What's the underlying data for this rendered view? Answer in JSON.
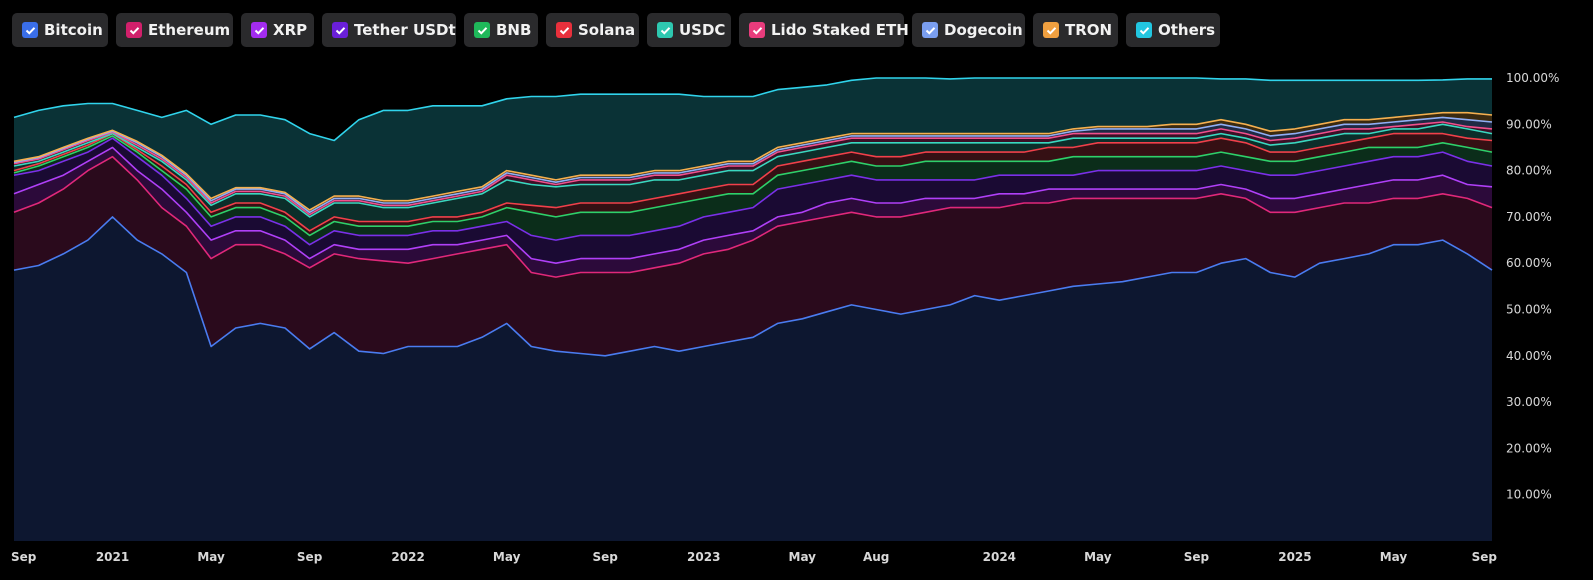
{
  "legend": [
    {
      "name": "Bitcoin",
      "color": "#3a6ee8"
    },
    {
      "name": "Ethereum",
      "color": "#d1206b"
    },
    {
      "name": "XRP",
      "color": "#a32cf0"
    },
    {
      "name": "Tether USDt",
      "color": "#6a1fd8"
    },
    {
      "name": "BNB",
      "color": "#1fb85a"
    },
    {
      "name": "Solana",
      "color": "#e8303c"
    },
    {
      "name": "USDC",
      "color": "#2ec8b0"
    },
    {
      "name": "Lido Staked ETH",
      "color": "#e83c7c"
    },
    {
      "name": "Dogecoin",
      "color": "#7a9ef0"
    },
    {
      "name": "TRON",
      "color": "#f0a040"
    },
    {
      "name": "Others",
      "color": "#22c6e0"
    }
  ],
  "chart_data": {
    "type": "area",
    "stacked": true,
    "title": "",
    "xlabel": "",
    "ylabel": "",
    "ylim": [
      0,
      100
    ],
    "y_ticks": [
      "10.00%",
      "20.00%",
      "30.00%",
      "40.00%",
      "50.00%",
      "60.00%",
      "70.00%",
      "80.00%",
      "90.00%",
      "100.00%"
    ],
    "x_ticks": [
      {
        "label": "Sep",
        "t": 0
      },
      {
        "label": "2021",
        "t": 4
      },
      {
        "label": "May",
        "t": 8
      },
      {
        "label": "Sep",
        "t": 12
      },
      {
        "label": "2022",
        "t": 16
      },
      {
        "label": "May",
        "t": 20
      },
      {
        "label": "Sep",
        "t": 24
      },
      {
        "label": "2023",
        "t": 28
      },
      {
        "label": "May",
        "t": 32
      },
      {
        "label": "Aug",
        "t": 35
      },
      {
        "label": "2024",
        "t": 40
      },
      {
        "label": "May",
        "t": 44
      },
      {
        "label": "Sep",
        "t": 48
      },
      {
        "label": "2025",
        "t": 52
      },
      {
        "label": "May",
        "t": 56
      },
      {
        "label": "Sep",
        "t": 60
      }
    ],
    "x_months": [
      0,
      1,
      2,
      3,
      4,
      5,
      6,
      7,
      8,
      9,
      10,
      11,
      12,
      13,
      14,
      15,
      16,
      17,
      18,
      19,
      20,
      21,
      22,
      23,
      24,
      25,
      26,
      27,
      28,
      29,
      30,
      31,
      32,
      33,
      34,
      35,
      36,
      37,
      38,
      39,
      40,
      41,
      42,
      43,
      44,
      45,
      46,
      47,
      48,
      49,
      50,
      51,
      52,
      53,
      54,
      55,
      56,
      57,
      58,
      59,
      60
    ],
    "cumulative_series": [
      {
        "name": "Bitcoin",
        "values": [
          58.5,
          59.5,
          62,
          65,
          70,
          65,
          62,
          58,
          42,
          46,
          47,
          46,
          41.5,
          45,
          41,
          40.5,
          42,
          42,
          42,
          44,
          47,
          42,
          41,
          40.5,
          40,
          41,
          42,
          41,
          42,
          43,
          44,
          47,
          48,
          49.5,
          51,
          50,
          49,
          50,
          51,
          53,
          52,
          53,
          54,
          55,
          55.5,
          56,
          57,
          58,
          58,
          60,
          61,
          58,
          57,
          60,
          61,
          62,
          64,
          64,
          65,
          62,
          58.5
        ]
      },
      {
        "name": "Ethereum",
        "values": [
          71,
          73,
          76,
          80,
          83,
          78,
          72,
          68,
          61,
          64,
          64,
          62,
          59,
          62,
          61,
          60.5,
          60,
          61,
          62,
          63,
          64,
          58,
          57,
          58,
          58,
          58,
          59,
          60,
          62,
          63,
          65,
          68,
          69,
          70,
          71,
          70,
          70,
          71,
          72,
          72,
          72,
          73,
          73,
          74,
          74,
          74,
          74,
          74,
          74,
          75,
          74,
          71,
          71,
          72,
          73,
          73,
          74,
          74,
          75,
          74,
          72
        ]
      },
      {
        "name": "XRP",
        "values": [
          75,
          77,
          79,
          82,
          85,
          80,
          76,
          71,
          65,
          67,
          67,
          65,
          61,
          64,
          63,
          63,
          63,
          64,
          64,
          65,
          66,
          61,
          60,
          61,
          61,
          61,
          62,
          63,
          65,
          66,
          67,
          70,
          71,
          73,
          74,
          73,
          73,
          74,
          74,
          74,
          75,
          75,
          76,
          76,
          76,
          76,
          76,
          76,
          76,
          77,
          76,
          74,
          74,
          75,
          76,
          77,
          78,
          78,
          79,
          77,
          76.5
        ]
      },
      {
        "name": "Tether USDt",
        "values": [
          79,
          80,
          82,
          84,
          87,
          83,
          79,
          74,
          68,
          70,
          70,
          68,
          64,
          67,
          66,
          66,
          66,
          67,
          67,
          68,
          69,
          66,
          65,
          66,
          66,
          66,
          67,
          68,
          70,
          71,
          72,
          76,
          77,
          78,
          79,
          78,
          78,
          78,
          78,
          78,
          79,
          79,
          79,
          79,
          80,
          80,
          80,
          80,
          80,
          81,
          80,
          79,
          79,
          80,
          81,
          82,
          83,
          83,
          84,
          82,
          81
        ]
      },
      {
        "name": "BNB",
        "values": [
          79.5,
          81,
          83,
          85,
          87.5,
          84,
          80,
          76,
          70,
          72,
          72,
          70,
          66,
          69,
          68,
          68,
          68,
          69,
          69,
          70,
          72,
          71,
          70,
          71,
          71,
          71,
          72,
          73,
          74,
          75,
          75,
          79,
          80,
          81,
          82,
          81,
          81,
          82,
          82,
          82,
          82,
          82,
          82,
          83,
          83,
          83,
          83,
          83,
          83,
          84,
          83,
          82,
          82,
          83,
          84,
          85,
          85,
          85,
          86,
          85,
          84
        ]
      },
      {
        "name": "Solana",
        "values": [
          80,
          81.5,
          83.5,
          85.5,
          88,
          84.5,
          81,
          77,
          71,
          73,
          73,
          71,
          67,
          70,
          69,
          69,
          69,
          70,
          70,
          71,
          73,
          72.5,
          72,
          73,
          73,
          73,
          74,
          75,
          76,
          77,
          77,
          81,
          82,
          83,
          84,
          83,
          83,
          84,
          84,
          84,
          84,
          84,
          85,
          85,
          86,
          86,
          86,
          86,
          86,
          87,
          86,
          84,
          84,
          85,
          86,
          87,
          88,
          88,
          88,
          87,
          86.5
        ]
      },
      {
        "name": "USDC",
        "values": [
          81,
          82,
          84,
          86,
          88,
          85,
          82,
          78,
          72.5,
          75,
          75,
          74,
          70,
          73,
          73,
          72,
          72,
          73,
          74,
          75,
          78,
          77,
          76.5,
          77,
          77,
          77,
          78,
          78,
          79,
          80,
          80,
          83,
          84,
          85,
          86,
          86,
          86,
          86,
          86,
          86,
          86,
          86,
          86,
          87,
          87,
          87,
          87,
          87,
          87,
          88,
          87,
          85.5,
          86,
          87,
          88,
          88,
          89,
          89,
          90,
          89,
          88
        ]
      },
      {
        "name": "Lido Staked ETH",
        "values": [
          81.5,
          82.5,
          84.5,
          86.5,
          88.3,
          85.5,
          82.5,
          78.5,
          73,
          75.5,
          75.5,
          74.5,
          70.5,
          73.5,
          73.5,
          72.5,
          72.5,
          73.5,
          74.5,
          75.5,
          79,
          78,
          77,
          78,
          78,
          78,
          79,
          79,
          80,
          81,
          81,
          84,
          85,
          86,
          87,
          87,
          87,
          87,
          87,
          87,
          87,
          87,
          87,
          88,
          88,
          88,
          88,
          88,
          88,
          89,
          88,
          86.5,
          87,
          88,
          89,
          89,
          89.5,
          90,
          90.5,
          89.5,
          89
        ]
      },
      {
        "name": "Dogecoin",
        "values": [
          81.8,
          82.8,
          84.8,
          86.8,
          88.5,
          86,
          83,
          79,
          73.5,
          76,
          76,
          75,
          71,
          74,
          74,
          73,
          73,
          74,
          75,
          76,
          79.5,
          78.5,
          77.5,
          78.5,
          78.5,
          78.5,
          79.5,
          79.5,
          80.5,
          81.5,
          81.5,
          84.5,
          85.5,
          86.5,
          87.5,
          87.5,
          87.5,
          87.5,
          87.5,
          87.5,
          87.5,
          87.5,
          87.5,
          88.5,
          89,
          89,
          89,
          89,
          89,
          90,
          89,
          87.5,
          88,
          89,
          90,
          90,
          90.5,
          91,
          91.5,
          91,
          90.5
        ]
      },
      {
        "name": "TRON",
        "values": [
          82,
          83,
          85,
          87,
          88.7,
          86.3,
          83.3,
          79.3,
          74,
          76.3,
          76.3,
          75.3,
          71.5,
          74.5,
          74.5,
          73.5,
          73.5,
          74.5,
          75.5,
          76.5,
          80,
          79,
          78,
          79,
          79,
          79,
          80,
          80,
          81,
          82,
          82,
          85,
          86,
          87,
          88,
          88,
          88,
          88,
          88,
          88,
          88,
          88,
          88,
          89,
          89.5,
          89.5,
          89.5,
          90,
          90,
          91,
          90,
          88.5,
          89,
          90,
          91,
          91,
          91.5,
          92,
          92.5,
          92.5,
          92
        ]
      },
      {
        "name": "Others",
        "values": [
          91.5,
          93,
          94,
          94.5,
          94.5,
          93,
          91.5,
          93,
          90,
          92,
          92,
          91,
          88,
          86.5,
          91,
          93,
          93,
          94,
          94,
          94,
          95.5,
          96,
          96,
          96.5,
          96.5,
          96.5,
          96.5,
          96.5,
          96,
          96,
          96,
          97.5,
          98,
          98.5,
          99.5,
          100,
          100,
          100,
          99.8,
          100,
          100,
          100,
          100,
          100,
          100,
          100,
          100,
          100,
          100,
          99.8,
          99.8,
          99.5,
          99.5,
          99.5,
          99.5,
          99.5,
          99.5,
          99.5,
          99.6,
          99.8,
          99.8
        ]
      }
    ]
  }
}
